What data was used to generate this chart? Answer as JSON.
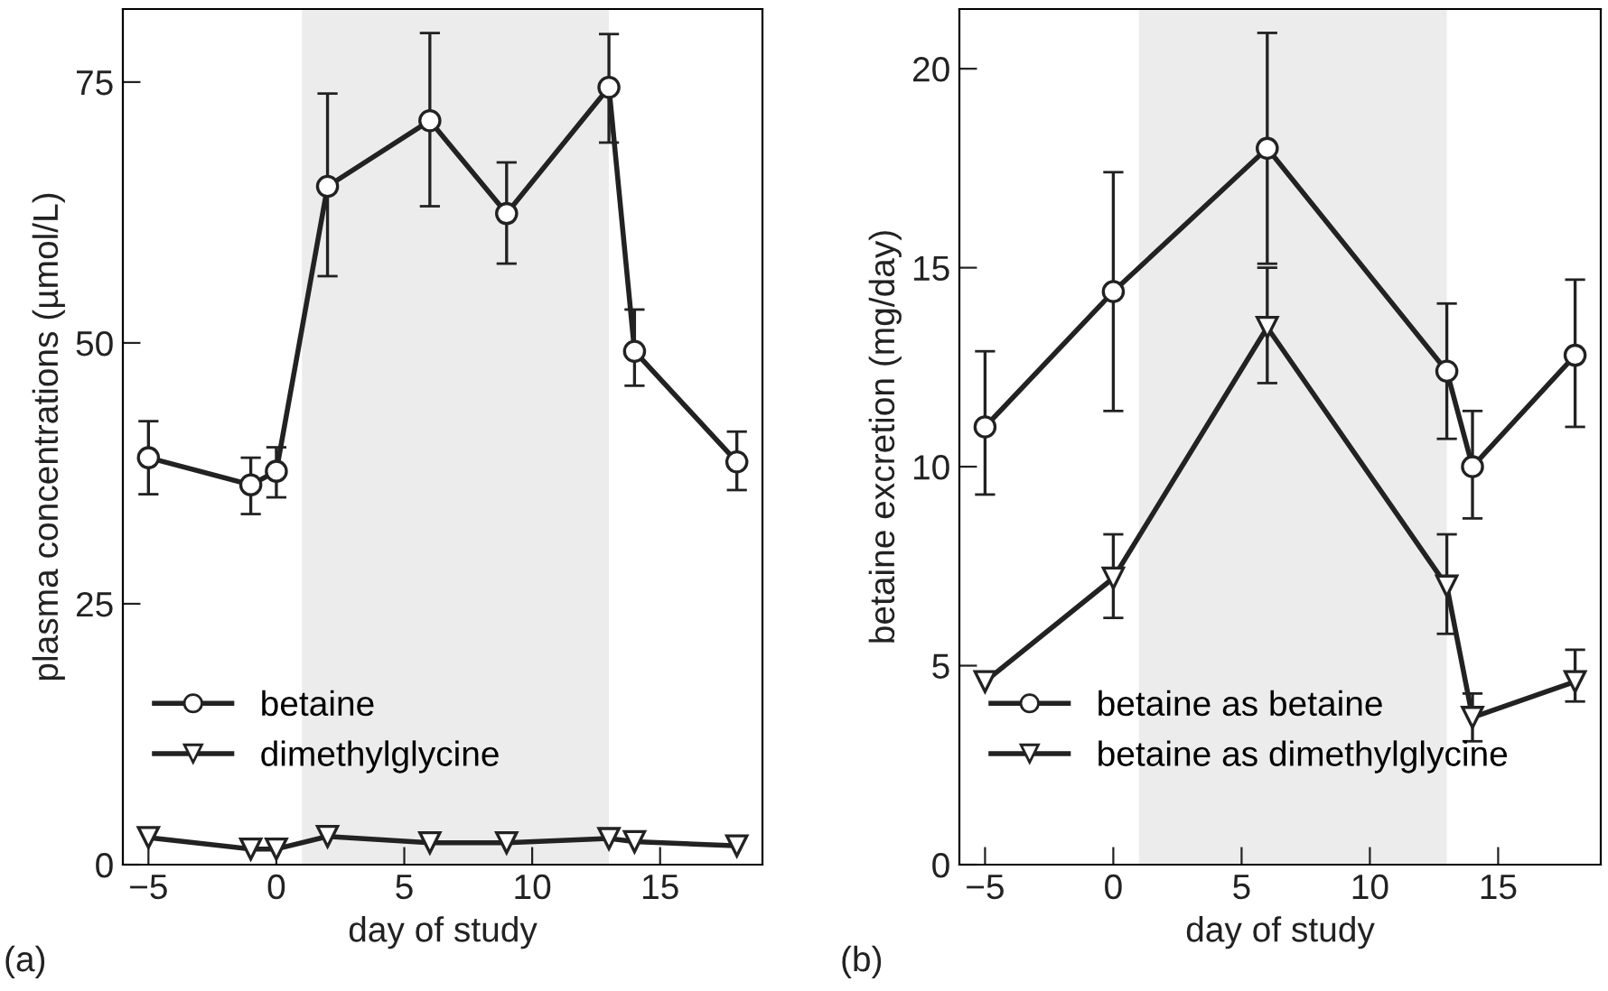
{
  "chart_data": [
    {
      "type": "line",
      "xlabel": "day of study",
      "ylabel": "plasma concentrations (µmol/L)",
      "annotations": [
        "(a)"
      ],
      "xlim": [
        -6,
        19
      ],
      "ylim": [
        0,
        82
      ],
      "xticks": [
        {
          "value": -5,
          "label": "−5"
        },
        0,
        5,
        10,
        15
      ],
      "yticks": [
        0,
        25,
        50,
        75
      ],
      "bands": [
        {
          "axis": "x",
          "from": 1,
          "to": 13,
          "color": "#ececec"
        }
      ],
      "legend": "bottom left",
      "grid": false,
      "line_style": "solid",
      "series": [
        {
          "name": "betaine",
          "color": "#222222",
          "marker": "circle",
          "x": [
            -5,
            -1,
            0,
            2,
            6,
            9,
            13,
            14,
            18
          ],
          "values": [
            39.0,
            36.4,
            37.7,
            65.0,
            71.3,
            62.4,
            74.5,
            49.2,
            38.6
          ],
          "errors": [
            [
              35.5,
              42.5
            ],
            [
              33.6,
              39.0
            ],
            [
              35.2,
              40.0
            ],
            [
              56.4,
              73.9
            ],
            [
              63.1,
              79.7
            ],
            [
              57.6,
              67.3
            ],
            [
              69.2,
              79.6
            ],
            [
              45.9,
              53.2
            ],
            [
              35.9,
              41.5
            ]
          ]
        },
        {
          "name": "dimethylglycine",
          "color": "#222222",
          "marker": "triangle",
          "x": [
            -5,
            -1,
            0,
            2,
            6,
            9,
            13,
            14,
            18
          ],
          "values": [
            2.6,
            1.5,
            1.5,
            2.7,
            2.1,
            2.1,
            2.5,
            2.2,
            1.8
          ]
        }
      ]
    },
    {
      "type": "line",
      "xlabel": "day of study",
      "ylabel": "betaine excretion (mg/day)",
      "annotations": [
        "(b)"
      ],
      "xlim": [
        -6,
        19
      ],
      "ylim": [
        0,
        21.5
      ],
      "xticks": [
        {
          "value": -5,
          "label": "−5"
        },
        0,
        5,
        10,
        15
      ],
      "yticks": [
        0,
        5,
        10,
        15,
        20
      ],
      "bands": [
        {
          "axis": "x",
          "from": 1,
          "to": 13,
          "color": "#ececec"
        }
      ],
      "legend": "bottom left",
      "grid": false,
      "line_style": "solid",
      "series": [
        {
          "name": "betaine as betaine",
          "color": "#222222",
          "marker": "circle",
          "x": [
            -5,
            0,
            6,
            13,
            14,
            18
          ],
          "values": [
            11.0,
            14.4,
            18.0,
            12.4,
            10.0,
            12.8
          ],
          "errors": [
            [
              9.3,
              12.9
            ],
            [
              11.4,
              17.4
            ],
            [
              15.1,
              20.9
            ],
            [
              10.7,
              14.1
            ],
            [
              8.7,
              11.4
            ],
            [
              11.0,
              14.7
            ]
          ]
        },
        {
          "name": "betaine as dimethylglycine",
          "color": "#222222",
          "marker": "triangle",
          "x": [
            -5,
            0,
            6,
            13,
            14,
            18
          ],
          "values": [
            4.6,
            7.2,
            13.5,
            7.0,
            3.7,
            4.6
          ],
          "errors": [
            null,
            [
              6.2,
              8.3
            ],
            [
              12.1,
              15.0
            ],
            [
              5.8,
              8.3
            ],
            [
              3.1,
              4.3
            ],
            [
              4.1,
              5.4
            ]
          ]
        }
      ]
    }
  ]
}
